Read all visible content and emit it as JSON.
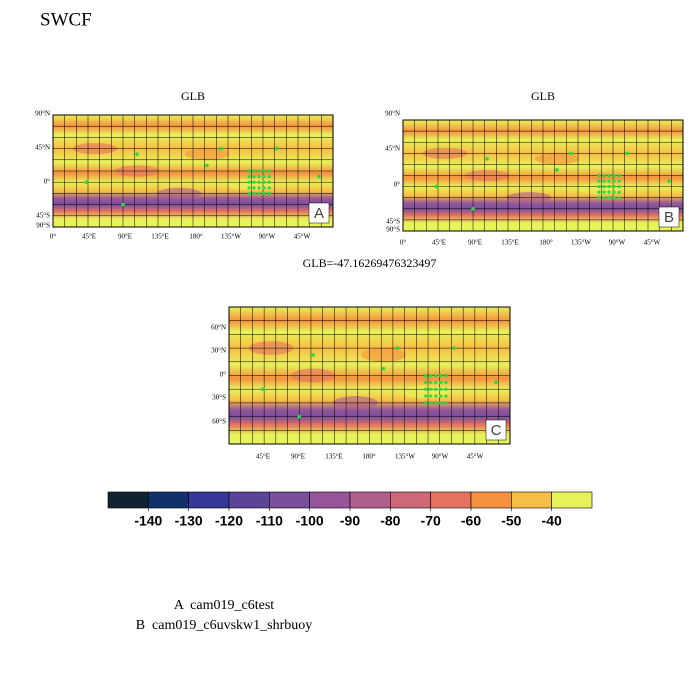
{
  "header": {
    "title": "SWCF"
  },
  "panels": [
    {
      "title": "GLB",
      "letter": "A",
      "lat_labels": [
        "90°N",
        "45°N",
        "0°",
        "45°S",
        "90°S"
      ],
      "lon_labels": [
        "0°",
        "45°E",
        "90°E",
        "135°E",
        "180°",
        "135°W",
        "90°W",
        "45°W"
      ]
    },
    {
      "title": "GLB",
      "letter": "B",
      "lat_labels": [
        "90°N",
        "45°N",
        "0°",
        "45°S",
        "90°S"
      ],
      "lon_labels": [
        "0°",
        "45°E",
        "90°E",
        "135°E",
        "180°",
        "135°W",
        "90°W",
        "45°W"
      ]
    },
    {
      "title": "GLB=-47.16269476323497",
      "letter": "C",
      "lat_labels": [
        "60°N",
        "30°N",
        "0°",
        "30°S",
        "60°S"
      ],
      "lon_labels": [
        "45°E",
        "90°E",
        "135°E",
        "180°",
        "135°W",
        "90°W",
        "45°W"
      ]
    }
  ],
  "colorbar": {
    "levels": [
      -140,
      -130,
      -120,
      -110,
      -100,
      -90,
      -80,
      -70,
      -60,
      -50,
      -40
    ],
    "colors": [
      "#0e2433",
      "#11316b",
      "#35379a",
      "#5a449a",
      "#7a4f9c",
      "#96579a",
      "#b05f8b",
      "#cc6877",
      "#e5745e",
      "#f6913f",
      "#f8bd44",
      "#e8f25a"
    ]
  },
  "legend": [
    "A  cam019_c6test",
    "B  cam019_c6uvskw1_shrbuoy"
  ]
}
